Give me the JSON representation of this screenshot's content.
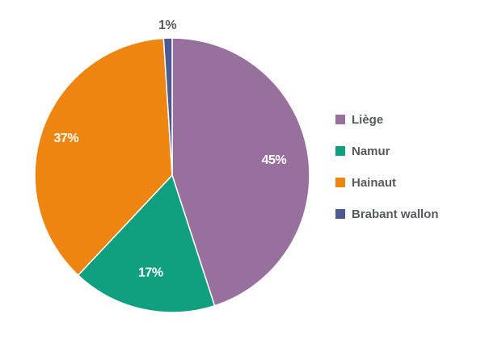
{
  "chart_data": {
    "type": "pie",
    "categories": [
      "Liège",
      "Namur",
      "Hainaut",
      "Brabant wallon"
    ],
    "values": [
      45,
      17,
      37,
      1
    ],
    "labels": [
      "45%",
      "17%",
      "37%",
      "1%"
    ],
    "colors": [
      "#98709e",
      "#10a080",
      "#ee8510",
      "#4d5a92"
    ],
    "legend_position": "right"
  }
}
